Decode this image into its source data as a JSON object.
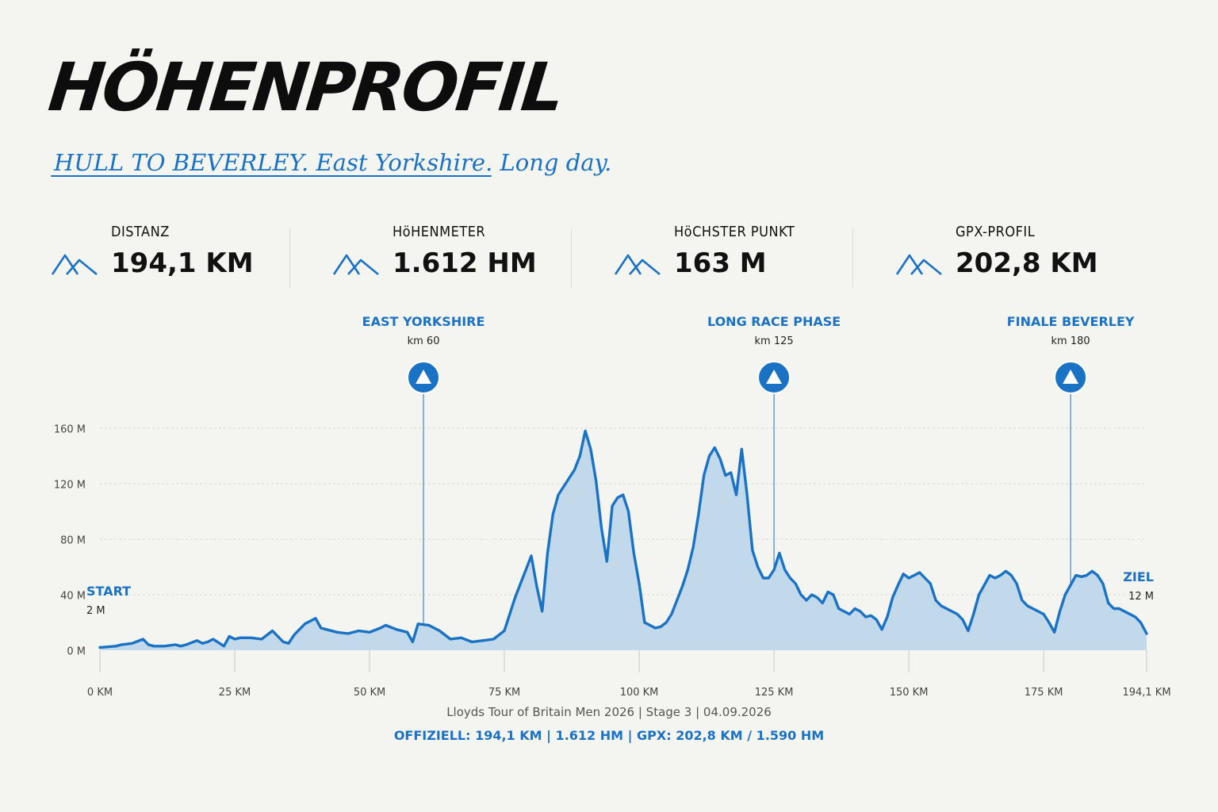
{
  "header": {
    "title": "HÖHENPROFIL",
    "subtitle": "HULL TO BEVERLEY. East Yorkshire. Long day."
  },
  "stats": [
    {
      "label": "DISTANZ",
      "value": "194,1 KM",
      "icon": "mountains-icon"
    },
    {
      "label": "HöHENMETER",
      "value": "1.612 HM",
      "icon": "mountains-icon"
    },
    {
      "label": "HöCHSTER PUNKT",
      "value": "163 M",
      "icon": "mountains-icon"
    },
    {
      "label": "GPX-PROFIL",
      "value": "202,8 KM",
      "icon": "mountains-icon"
    }
  ],
  "colors": {
    "accent": "#1a72c4",
    "fill": "#bfd6ea",
    "background": "#f4f4f0",
    "text": "#111111",
    "grid": "#d8d8d4"
  },
  "chart_data": {
    "type": "area",
    "xlabel": "",
    "ylabel": "",
    "xlim": [
      0,
      194.1
    ],
    "ylim": [
      0,
      160
    ],
    "grid": true,
    "x_ticks": [
      {
        "value": 0,
        "label": "0 KM"
      },
      {
        "value": 25,
        "label": "25 KM"
      },
      {
        "value": 50,
        "label": "50 KM"
      },
      {
        "value": 75,
        "label": "75 KM"
      },
      {
        "value": 100,
        "label": "100 KM"
      },
      {
        "value": 125,
        "label": "125 KM"
      },
      {
        "value": 150,
        "label": "150 KM"
      },
      {
        "value": 175,
        "label": "175 KM"
      },
      {
        "value": 194.1,
        "label": "194,1 KM"
      }
    ],
    "y_ticks": [
      {
        "value": 0,
        "label": "0 M"
      },
      {
        "value": 40,
        "label": "40 M"
      },
      {
        "value": 80,
        "label": "80 M"
      },
      {
        "value": 120,
        "label": "120 M"
      },
      {
        "value": 160,
        "label": "160 M"
      }
    ],
    "profile": {
      "x": [
        0,
        3,
        4,
        6,
        8,
        9,
        10,
        12,
        14,
        15,
        16,
        18,
        19,
        20,
        21,
        23,
        24,
        25,
        26,
        28,
        30,
        32,
        34,
        35,
        36,
        37,
        38,
        40,
        41,
        42,
        44,
        46,
        48,
        50,
        52,
        53,
        55,
        57,
        58,
        59,
        61,
        63,
        65,
        67,
        69,
        71,
        73,
        75,
        77,
        78,
        79,
        80,
        81,
        82,
        83,
        84,
        85,
        86,
        88,
        89,
        90,
        91,
        92,
        93,
        94,
        95,
        96,
        97,
        98,
        99,
        100,
        101,
        103,
        104,
        105,
        106,
        107,
        108,
        109,
        110,
        111,
        112,
        113,
        114,
        115,
        116,
        117,
        118,
        119,
        120,
        121,
        122,
        123,
        124,
        125,
        126,
        127,
        128,
        129,
        130,
        131,
        132,
        133,
        134,
        135,
        136,
        137,
        138,
        139,
        140,
        141,
        142,
        143,
        144,
        145,
        146,
        147,
        148,
        149,
        150,
        151,
        152,
        153,
        154,
        155,
        156,
        157,
        158,
        159,
        160,
        161,
        162,
        163,
        164,
        165,
        166,
        167,
        168,
        169,
        170,
        171,
        172,
        173,
        174,
        175,
        176,
        177,
        178,
        179,
        180,
        181,
        182,
        183,
        184,
        185,
        186,
        187,
        188,
        189,
        190,
        191,
        192,
        193,
        194.1
      ],
      "y": [
        2,
        3,
        4,
        5,
        8,
        4,
        3,
        3,
        4,
        3,
        4,
        7,
        5,
        6,
        8,
        3,
        10,
        8,
        9,
        9,
        8,
        14,
        6,
        5,
        11,
        15,
        19,
        23,
        16,
        15,
        13,
        12,
        14,
        13,
        16,
        18,
        15,
        13,
        6,
        19,
        18,
        14,
        8,
        9,
        6,
        7,
        8,
        14,
        38,
        48,
        58,
        68,
        46,
        28,
        70,
        98,
        112,
        118,
        130,
        140,
        158,
        145,
        122,
        88,
        64,
        104,
        110,
        112,
        100,
        70,
        48,
        20,
        16,
        17,
        20,
        26,
        36,
        46,
        58,
        74,
        98,
        126,
        140,
        146,
        138,
        126,
        128,
        112,
        145,
        112,
        72,
        60,
        52,
        52,
        58,
        70,
        58,
        52,
        48,
        40,
        36,
        40,
        38,
        34,
        42,
        40,
        30,
        28,
        26,
        30,
        28,
        24,
        25,
        22,
        15,
        24,
        38,
        47,
        55,
        52,
        54,
        56,
        52,
        48,
        36,
        32,
        30,
        28,
        26,
        22,
        14,
        26,
        40,
        47,
        54,
        52,
        54,
        57,
        54,
        48,
        36,
        32,
        30,
        28,
        26,
        20,
        13,
        28,
        40,
        47,
        54,
        53,
        54,
        57,
        54,
        48,
        34,
        30,
        30,
        28,
        26,
        24,
        20,
        12
      ]
    },
    "annotations": [
      {
        "x": 60,
        "title": "EAST YORKSHIRE",
        "sub": "km 60"
      },
      {
        "x": 125,
        "title": "LONG RACE PHASE",
        "sub": "km 125"
      },
      {
        "x": 180,
        "title": "FINALE BEVERLEY",
        "sub": "km 180"
      }
    ],
    "start": {
      "label": "START",
      "value": "2 M"
    },
    "finish": {
      "label": "ZIEL",
      "value": "12 M"
    }
  },
  "footer": {
    "line1": "Lloyds Tour of Britain Men 2026 | Stage 3 | 04.09.2026",
    "line2": "OFFIZIELL: 194,1 KM | 1.612 HM | GPX: 202,8 KM / 1.590 HM"
  }
}
